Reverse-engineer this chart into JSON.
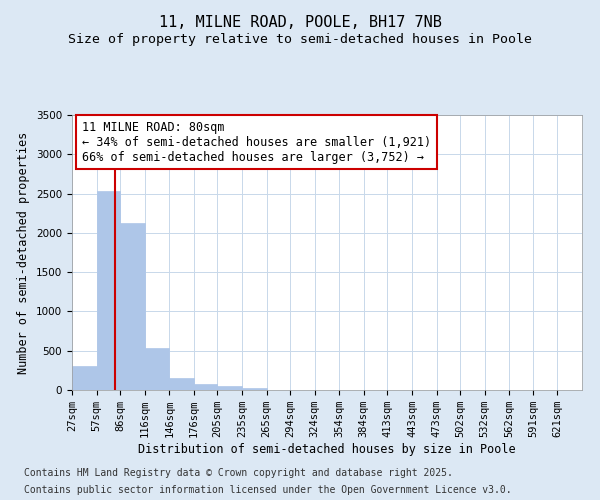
{
  "title": "11, MILNE ROAD, POOLE, BH17 7NB",
  "subtitle": "Size of property relative to semi-detached houses in Poole",
  "xlabel": "Distribution of semi-detached houses by size in Poole",
  "ylabel": "Number of semi-detached properties",
  "footnote1": "Contains HM Land Registry data © Crown copyright and database right 2025.",
  "footnote2": "Contains public sector information licensed under the Open Government Licence v3.0.",
  "annotation_line1": "11 MILNE ROAD: 80sqm",
  "annotation_line2": "← 34% of semi-detached houses are smaller (1,921)",
  "annotation_line3": "66% of semi-detached houses are larger (3,752) →",
  "bar_left_edges": [
    27,
    57,
    86,
    116,
    146,
    176,
    205,
    235,
    265,
    294,
    324,
    354,
    384,
    413,
    443,
    473,
    502,
    532,
    562,
    591
  ],
  "bar_widths": [
    30,
    29,
    30,
    30,
    30,
    29,
    30,
    30,
    29,
    30,
    30,
    30,
    29,
    30,
    30,
    29,
    30,
    30,
    29,
    30
  ],
  "bar_heights": [
    300,
    2530,
    2120,
    530,
    150,
    80,
    50,
    30,
    5,
    3,
    2,
    2,
    1,
    1,
    1,
    0,
    0,
    0,
    0,
    0
  ],
  "bar_color": "#aec6e8",
  "bar_edge_color": "#aec6e8",
  "x_tick_labels": [
    "27sqm",
    "57sqm",
    "86sqm",
    "116sqm",
    "146sqm",
    "176sqm",
    "205sqm",
    "235sqm",
    "265sqm",
    "294sqm",
    "324sqm",
    "354sqm",
    "384sqm",
    "413sqm",
    "443sqm",
    "473sqm",
    "502sqm",
    "532sqm",
    "562sqm",
    "591sqm",
    "621sqm"
  ],
  "x_tick_positions": [
    27,
    57,
    86,
    116,
    146,
    176,
    205,
    235,
    265,
    294,
    324,
    354,
    384,
    413,
    443,
    473,
    502,
    532,
    562,
    591,
    621
  ],
  "ylim": [
    0,
    3500
  ],
  "xlim": [
    27,
    651
  ],
  "vline_x": 80,
  "vline_color": "#cc0000",
  "grid_color": "#c8d8ea",
  "background_color": "#dce8f4",
  "plot_bg_color": "#ffffff",
  "title_fontsize": 11,
  "subtitle_fontsize": 9.5,
  "annotation_fontsize": 8.5,
  "axis_label_fontsize": 8.5,
  "tick_fontsize": 7.5,
  "footnote_fontsize": 7
}
